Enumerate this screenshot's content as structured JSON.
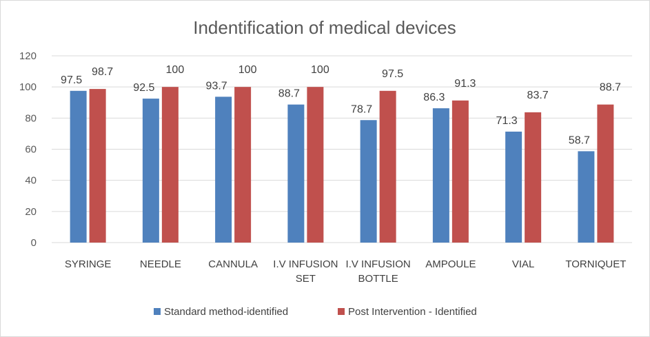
{
  "chart_data": {
    "type": "bar",
    "title": "Indentification of medical devices",
    "xlabel": "",
    "ylabel": "",
    "ylim": [
      0,
      120
    ],
    "yticks": [
      0,
      20,
      40,
      60,
      80,
      100,
      120
    ],
    "grid": true,
    "legend_position": "bottom",
    "categories": [
      [
        "SYRINGE"
      ],
      [
        "NEEDLE"
      ],
      [
        "CANNULA"
      ],
      [
        "I.V INFUSION",
        "SET"
      ],
      [
        "I.V INFUSION",
        "BOTTLE"
      ],
      [
        "AMPOULE"
      ],
      [
        "VIAL"
      ],
      [
        "TORNIQUET"
      ]
    ],
    "series": [
      {
        "name": "Standard method-identified",
        "color": "#4f81bd",
        "values": [
          97.5,
          92.5,
          93.7,
          88.7,
          78.7,
          86.3,
          71.3,
          58.7
        ]
      },
      {
        "name": "Post Intervention - Identified",
        "color": "#c0504d",
        "values": [
          98.7,
          100,
          100,
          100,
          97.5,
          91.3,
          83.7,
          88.7
        ]
      }
    ]
  }
}
